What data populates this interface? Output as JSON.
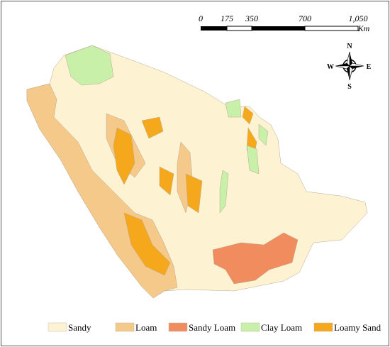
{
  "scale_bar": {
    "labels": [
      "0",
      "175",
      "350",
      "700",
      "1,050"
    ],
    "unit": "Km"
  },
  "compass": {
    "north": "N",
    "south": "S",
    "east": "E",
    "west": "W"
  },
  "legend": [
    {
      "label": "Sandy",
      "color": "#fdf3d3"
    },
    {
      "label": "Loam",
      "color": "#f5c98a"
    },
    {
      "label": "Sandy Loam",
      "color": "#f08c5e"
    },
    {
      "label": "Clay Loam",
      "color": "#c8f0a8"
    },
    {
      "label": "Loamy Sand",
      "color": "#f5a81c"
    }
  ]
}
